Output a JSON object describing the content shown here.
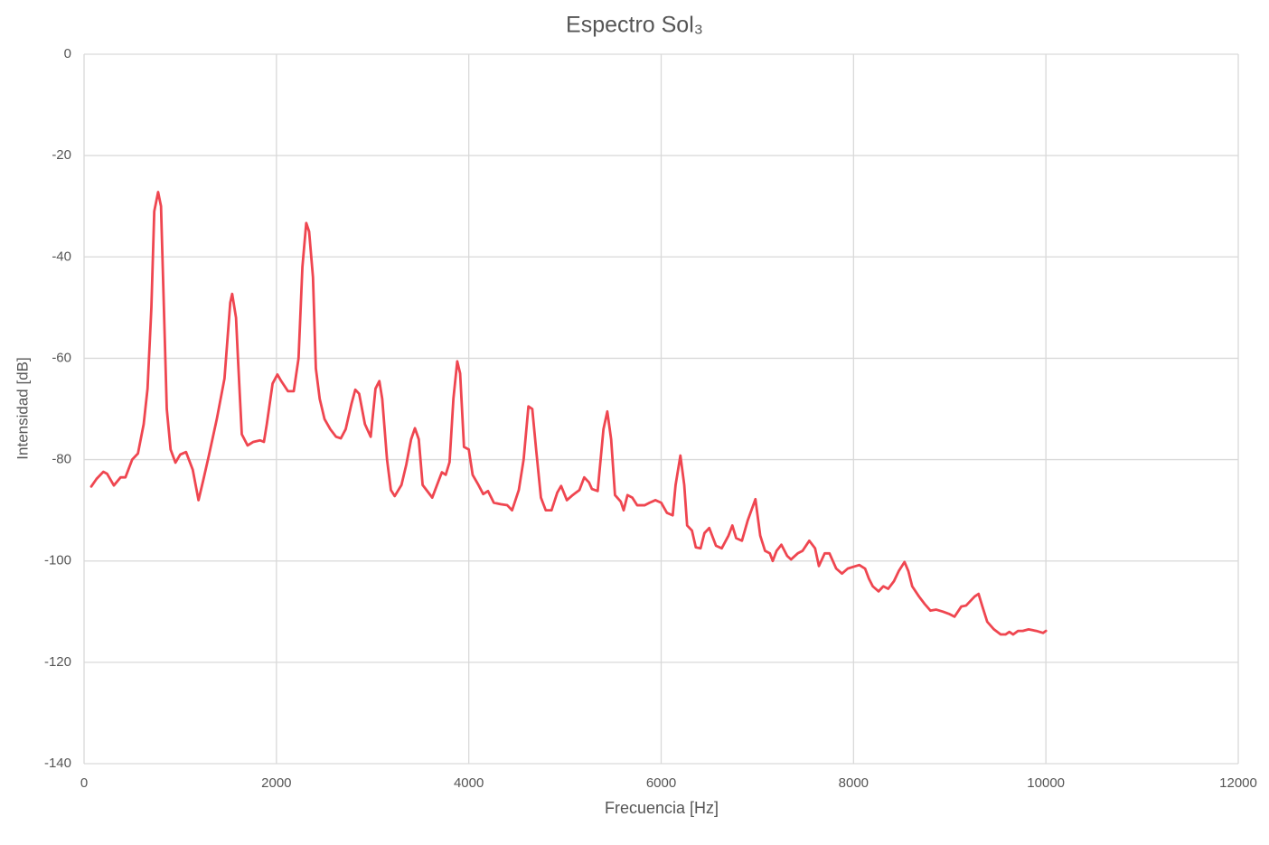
{
  "chart_data": {
    "type": "line",
    "title": "Espectro Sol₃",
    "x_label": "Frecuencia [Hz]",
    "y_label": "Intensidad [dB]",
    "color": "#ef4650",
    "grid": true,
    "xlim": [
      0,
      12000
    ],
    "xticks": [
      0,
      2000,
      4000,
      6000,
      8000,
      10000,
      12000
    ],
    "ylim": [
      -140,
      0
    ],
    "yticks": [
      0,
      -20,
      -40,
      -60,
      -80,
      -100,
      -120,
      -140
    ],
    "x": [
      75,
      130,
      200,
      240,
      310,
      380,
      430,
      500,
      560,
      620,
      660,
      700,
      730,
      770,
      800,
      830,
      860,
      900,
      950,
      1000,
      1060,
      1130,
      1190,
      1240,
      1300,
      1380,
      1460,
      1520,
      1540,
      1580,
      1600,
      1640,
      1700,
      1760,
      1830,
      1870,
      1900,
      1960,
      2010,
      2050,
      2120,
      2180,
      2230,
      2270,
      2310,
      2340,
      2380,
      2410,
      2450,
      2500,
      2560,
      2620,
      2670,
      2720,
      2780,
      2820,
      2860,
      2920,
      2980,
      3030,
      3070,
      3100,
      3150,
      3190,
      3230,
      3300,
      3350,
      3400,
      3440,
      3480,
      3520,
      3580,
      3620,
      3680,
      3720,
      3760,
      3800,
      3840,
      3880,
      3910,
      3950,
      4000,
      4040,
      4100,
      4150,
      4200,
      4260,
      4330,
      4400,
      4450,
      4520,
      4570,
      4620,
      4660,
      4700,
      4750,
      4800,
      4860,
      4920,
      4960,
      5020,
      5080,
      5150,
      5200,
      5250,
      5280,
      5340,
      5400,
      5440,
      5480,
      5520,
      5580,
      5610,
      5650,
      5700,
      5750,
      5830,
      5880,
      5940,
      6000,
      6060,
      6120,
      6150,
      6200,
      6240,
      6270,
      6320,
      6360,
      6410,
      6450,
      6500,
      6570,
      6630,
      6700,
      6740,
      6780,
      6840,
      6900,
      6980,
      7030,
      7080,
      7130,
      7160,
      7200,
      7250,
      7310,
      7350,
      7420,
      7470,
      7540,
      7600,
      7640,
      7700,
      7750,
      7820,
      7880,
      7940,
      7990,
      8060,
      8120,
      8160,
      8200,
      8260,
      8310,
      8360,
      8420,
      8470,
      8530,
      8570,
      8610,
      8680,
      8740,
      8800,
      8860,
      8930,
      9000,
      9050,
      9120,
      9170,
      9210,
      9260,
      9300,
      9340,
      9390,
      9460,
      9530,
      9580,
      9620,
      9660,
      9710,
      9760,
      9820,
      9900,
      9970,
      10000
    ],
    "values": [
      -85.3,
      -83.8,
      -82.4,
      -82.8,
      -85.1,
      -83.5,
      -83.5,
      -80,
      -78.8,
      -73,
      -66,
      -50,
      -31,
      -27.2,
      -30,
      -50,
      -70,
      -78,
      -80.6,
      -79,
      -78.5,
      -82,
      -88,
      -84,
      -79,
      -72,
      -64,
      -49,
      -47.3,
      -52,
      -60,
      -75,
      -77.2,
      -76.5,
      -76.2,
      -76.5,
      -73,
      -65,
      -63.2,
      -64.5,
      -66.5,
      -66.5,
      -60,
      -42,
      -33.3,
      -35,
      -44,
      -62,
      -68,
      -72,
      -74,
      -75.5,
      -75.8,
      -74,
      -69,
      -66.2,
      -67,
      -73,
      -75.5,
      -66,
      -64.5,
      -68,
      -80,
      -86,
      -87.2,
      -85,
      -81,
      -76,
      -73.8,
      -76,
      -85,
      -86.5,
      -87.5,
      -84.5,
      -82.5,
      -83,
      -80.5,
      -68,
      -60.6,
      -63,
      -77.5,
      -78,
      -83,
      -85,
      -86.8,
      -86.2,
      -88.5,
      -88.8,
      -89,
      -90,
      -86,
      -80,
      -69.5,
      -70,
      -78,
      -87.5,
      -90,
      -90,
      -86.5,
      -85.2,
      -88,
      -87,
      -86,
      -83.5,
      -84.5,
      -85.8,
      -86.2,
      -74,
      -70.5,
      -76,
      -87,
      -88.3,
      -90,
      -87,
      -87.5,
      -89,
      -89,
      -88.5,
      -88,
      -88.5,
      -90.5,
      -91,
      -85,
      -79.2,
      -85,
      -93,
      -94,
      -97.3,
      -97.5,
      -94.5,
      -93.5,
      -97,
      -97.5,
      -95,
      -93,
      -95.5,
      -96,
      -92,
      -87.8,
      -95,
      -98,
      -98.5,
      -100,
      -98,
      -96.8,
      -99,
      -99.7,
      -98.5,
      -98,
      -96,
      -97.5,
      -101,
      -98.5,
      -98.5,
      -101.5,
      -102.5,
      -101.5,
      -101.2,
      -100.8,
      -101.5,
      -103.5,
      -105,
      -106,
      -105,
      -105.5,
      -104,
      -102,
      -100.2,
      -102,
      -105,
      -107,
      -108.5,
      -109.8,
      -109.6,
      -110,
      -110.5,
      -111,
      -109,
      -108.8,
      -108,
      -107,
      -106.5,
      -109,
      -112,
      -113.5,
      -114.5,
      -114.5,
      -114,
      -114.5,
      -113.8,
      -113.8,
      -113.5,
      -113.8,
      -114.2,
      -113.8
    ]
  }
}
